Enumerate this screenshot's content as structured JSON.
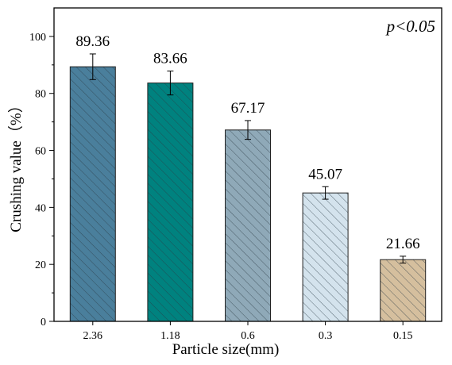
{
  "chart_data": {
    "type": "bar",
    "annotation": "p<0.05",
    "x_label": "Particle size(mm)",
    "y_label": "Crushing value（%）",
    "categories": [
      "2.36",
      "1.18",
      "0.6",
      "0.3",
      "0.15"
    ],
    "values": [
      89.36,
      83.66,
      67.17,
      45.07,
      21.66
    ],
    "errors": [
      4.5,
      4.2,
      3.3,
      2.2,
      1.2
    ],
    "colors": [
      "#4a7f9c",
      "#00827f",
      "#8fa9b8",
      "#d4e3ed",
      "#d5bf9e"
    ],
    "ylim": [
      0,
      110
    ],
    "yticks": [
      0,
      20,
      40,
      60,
      80,
      100
    ],
    "hatch": true
  }
}
